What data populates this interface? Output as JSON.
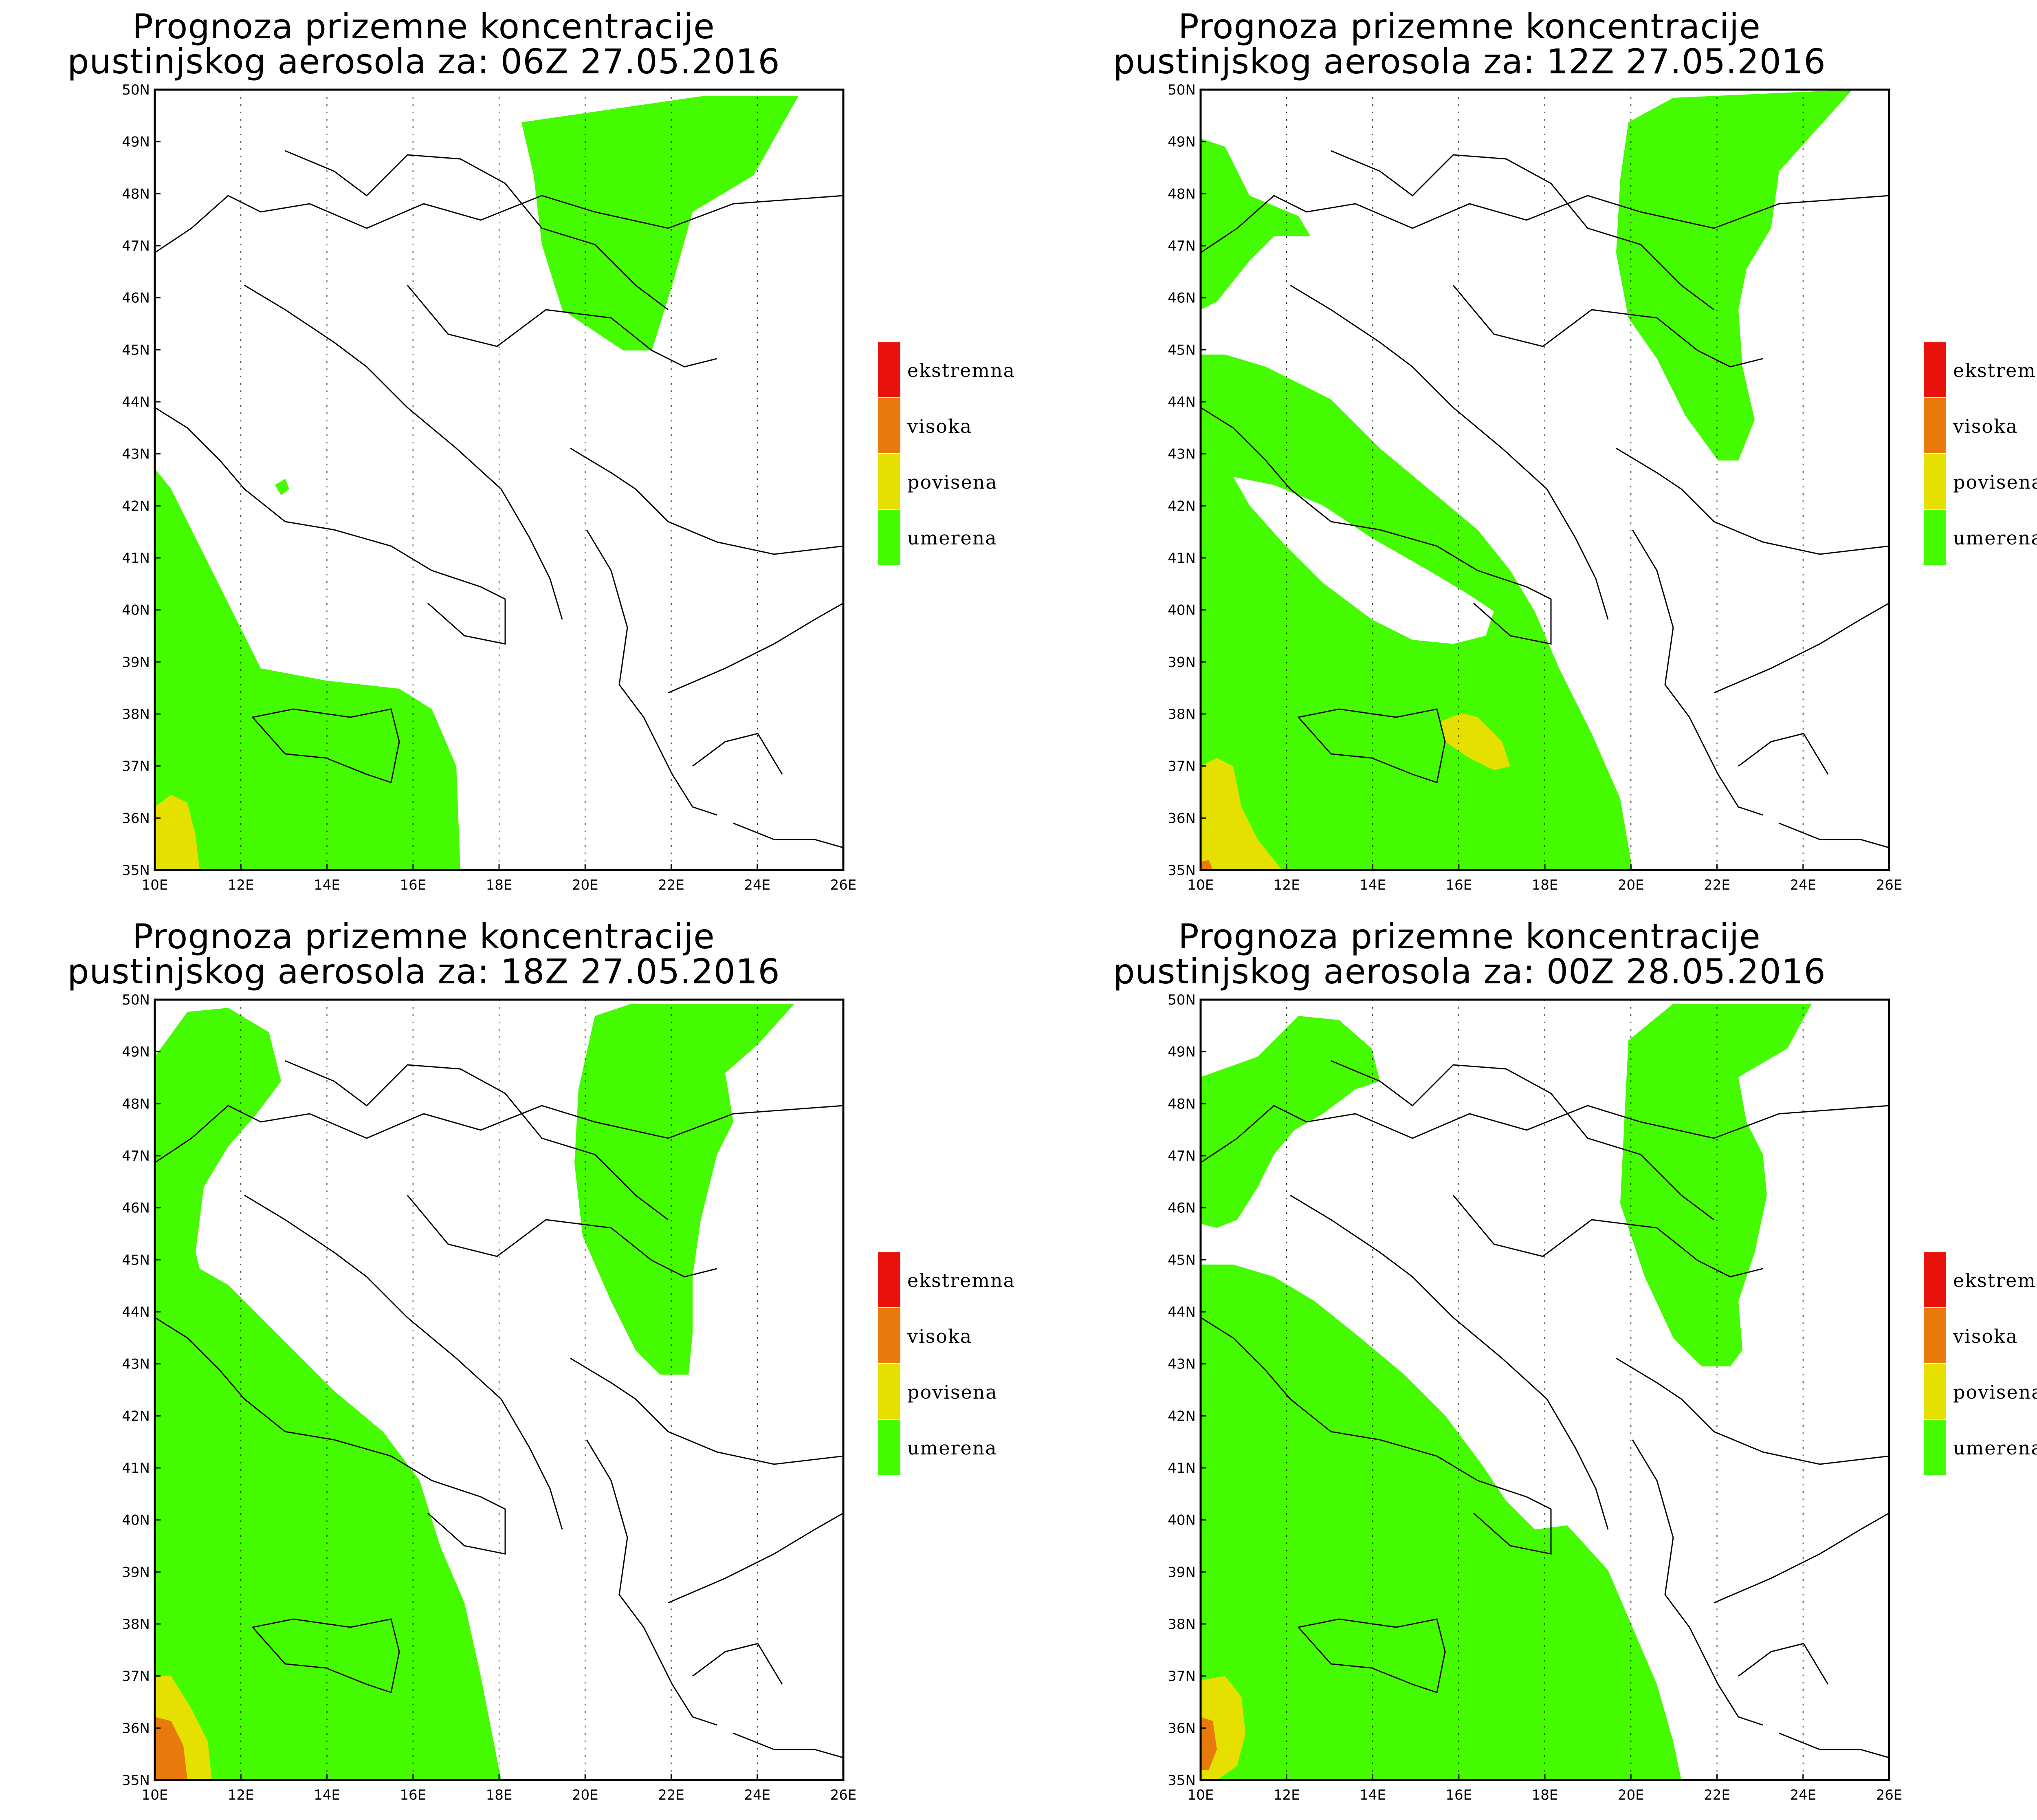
{
  "colors": {
    "ekstremna": "#e8110b",
    "visoka": "#e87a0b",
    "povisena": "#e5e000",
    "umerena": "#44fb00",
    "border": "#000000"
  },
  "axes": {
    "lat_ticks": [
      "50N",
      "49N",
      "48N",
      "47N",
      "46N",
      "45N",
      "44N",
      "43N",
      "42N",
      "41N",
      "40N",
      "39N",
      "38N",
      "37N",
      "36N",
      "35N"
    ],
    "lon_ticks": [
      "10E",
      "12E",
      "14E",
      "16E",
      "18E",
      "20E",
      "22E",
      "24E",
      "26E"
    ]
  },
  "legend": [
    {
      "key": "ekstremna",
      "label": "ekstremna"
    },
    {
      "key": "visoka",
      "label": "visoka"
    },
    {
      "key": "povisena",
      "label": "povisena"
    },
    {
      "key": "umerena",
      "label": "umerena"
    }
  ],
  "panels": [
    {
      "title_line1": "Prognoza prizemne koncentracije",
      "title_line2": "pustinjskog aerosola za: 06Z 27.05.2016"
    },
    {
      "title_line1": "Prognoza prizemne koncentracije",
      "title_line2": "pustinjskog aerosola za: 12Z 27.05.2016"
    },
    {
      "title_line1": "Prognoza prizemne koncentracije",
      "title_line2": "pustinjskog aerosola za: 18Z 27.05.2016"
    },
    {
      "title_line1": "Prognoza prizemne koncentracije",
      "title_line2": "pustinjskog aerosola za: 00Z 28.05.2016"
    }
  ]
}
